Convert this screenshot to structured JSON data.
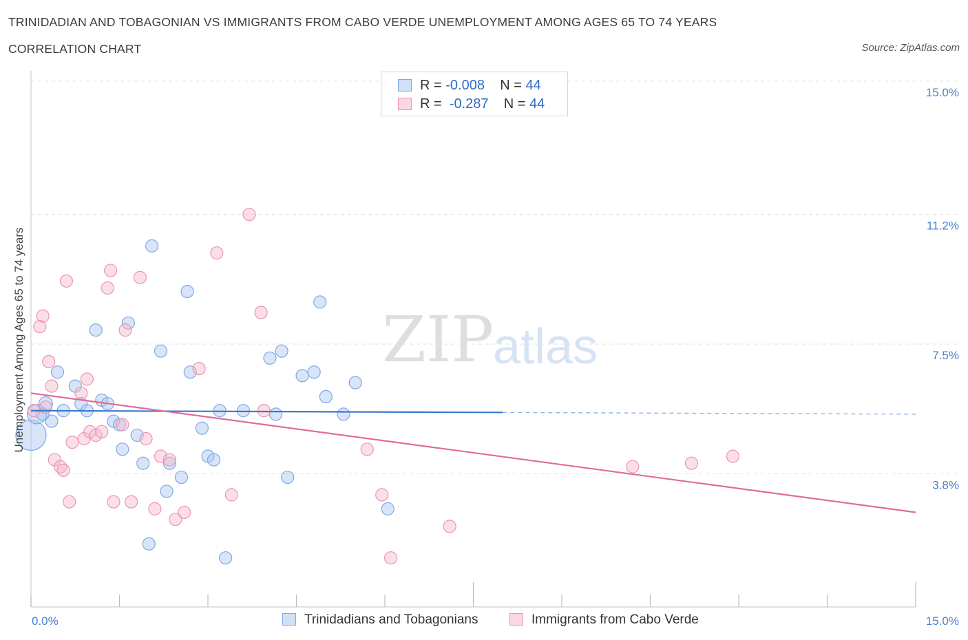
{
  "header": {
    "title": "TRINIDADIAN AND TOBAGONIAN VS IMMIGRANTS FROM CABO VERDE UNEMPLOYMENT AMONG AGES 65 TO 74 YEARS",
    "subtitle": "CORRELATION CHART",
    "source": "Source: ZipAtlas.com"
  },
  "watermark": {
    "zip": "ZIP",
    "atlas": "atlas"
  },
  "legend": {
    "rows": [
      {
        "r_label": "R = ",
        "r_value": "-0.008",
        "n_label": "N = ",
        "n_value": "44",
        "color": "#a9c6ef"
      },
      {
        "r_label": "R = ",
        "r_value": "-0.287",
        "n_label": "N = ",
        "n_value": "44",
        "color": "#f5b8cb"
      }
    ]
  },
  "bottom_legend": [
    {
      "label": "Trinidadians and Tobagonians",
      "color": "#a9c6ef"
    },
    {
      "label": "Immigrants from Cabo Verde",
      "color": "#f5b8cb"
    }
  ],
  "chart_data": {
    "type": "scatter",
    "title": "TRINIDADIAN AND TOBAGONIAN VS IMMIGRANTS FROM CABO VERDE UNEMPLOYMENT AMONG AGES 65 TO 74 YEARS",
    "xlabel": "",
    "ylabel": "Unemployment Among Ages 65 to 74 years",
    "xlim": [
      0,
      15
    ],
    "ylim": [
      0,
      15
    ],
    "x_tick_labels": [
      "0.0%",
      "15.0%"
    ],
    "y_ticks": [
      3.8,
      7.5,
      11.2,
      15.0
    ],
    "y_tick_labels": [
      "3.8%",
      "7.5%",
      "11.2%",
      "15.0%"
    ],
    "grid": true,
    "legend_position": "top-center",
    "series": [
      {
        "name": "Trinidadians and Tobagonians",
        "color": "#7da9e3",
        "trend": {
          "x": [
            0,
            8.0
          ],
          "y": [
            5.6,
            5.55
          ],
          "dashed_to": [
            15,
            5.5
          ]
        },
        "points": [
          [
            0.0,
            4.9,
            22
          ],
          [
            0.1,
            5.5,
            14
          ],
          [
            0.25,
            5.8,
            10
          ],
          [
            0.35,
            5.3,
            9
          ],
          [
            0.45,
            6.7,
            9
          ],
          [
            0.55,
            5.6,
            9
          ],
          [
            0.75,
            6.3,
            9
          ],
          [
            0.85,
            5.8,
            9
          ],
          [
            0.95,
            5.6,
            9
          ],
          [
            1.1,
            7.9,
            9
          ],
          [
            1.2,
            5.9,
            9
          ],
          [
            1.3,
            5.8,
            9
          ],
          [
            1.4,
            5.3,
            9
          ],
          [
            1.5,
            5.2,
            9
          ],
          [
            1.55,
            4.5,
            9
          ],
          [
            1.65,
            8.1,
            9
          ],
          [
            1.8,
            4.9,
            9
          ],
          [
            1.9,
            4.1,
            9
          ],
          [
            2.0,
            1.8,
            9
          ],
          [
            2.05,
            10.3,
            9
          ],
          [
            2.2,
            7.3,
            9
          ],
          [
            2.3,
            3.3,
            9
          ],
          [
            2.35,
            4.1,
            9
          ],
          [
            2.55,
            3.7,
            9
          ],
          [
            2.65,
            9.0,
            9
          ],
          [
            2.7,
            6.7,
            9
          ],
          [
            2.9,
            5.1,
            9
          ],
          [
            3.0,
            4.3,
            9
          ],
          [
            3.1,
            4.2,
            9
          ],
          [
            3.2,
            5.6,
            9
          ],
          [
            3.3,
            1.4,
            9
          ],
          [
            3.6,
            5.6,
            9
          ],
          [
            4.05,
            7.1,
            9
          ],
          [
            4.15,
            5.5,
            9
          ],
          [
            4.25,
            7.3,
            9
          ],
          [
            4.35,
            3.7,
            9
          ],
          [
            4.6,
            6.6,
            9
          ],
          [
            4.8,
            6.7,
            9
          ],
          [
            4.9,
            8.7,
            9
          ],
          [
            5.0,
            6.0,
            9
          ],
          [
            5.3,
            5.5,
            9
          ],
          [
            5.5,
            6.4,
            9
          ],
          [
            6.05,
            2.8,
            9
          ],
          [
            0.2,
            5.5,
            9
          ]
        ]
      },
      {
        "name": "Immigrants from Cabo Verde",
        "color": "#ee93b1",
        "trend": {
          "x": [
            0,
            15
          ],
          "y": [
            6.1,
            2.7
          ]
        },
        "points": [
          [
            0.05,
            5.6,
            9
          ],
          [
            0.15,
            8.0,
            9
          ],
          [
            0.2,
            8.3,
            9
          ],
          [
            0.25,
            5.7,
            9
          ],
          [
            0.3,
            7.0,
            9
          ],
          [
            0.35,
            6.3,
            9
          ],
          [
            0.4,
            4.2,
            9
          ],
          [
            0.5,
            4.0,
            9
          ],
          [
            0.6,
            9.3,
            9
          ],
          [
            0.65,
            3.0,
            9
          ],
          [
            0.7,
            4.7,
            9
          ],
          [
            0.85,
            6.1,
            9
          ],
          [
            0.9,
            4.8,
            9
          ],
          [
            0.95,
            6.5,
            9
          ],
          [
            1.0,
            5.0,
            9
          ],
          [
            1.1,
            4.9,
            9
          ],
          [
            1.2,
            5.0,
            9
          ],
          [
            1.3,
            9.1,
            9
          ],
          [
            1.35,
            9.6,
            9
          ],
          [
            1.4,
            3.0,
            9
          ],
          [
            1.55,
            5.2,
            9
          ],
          [
            1.6,
            7.9,
            9
          ],
          [
            1.7,
            3.0,
            9
          ],
          [
            1.85,
            9.4,
            9
          ],
          [
            1.95,
            4.8,
            9
          ],
          [
            2.1,
            2.8,
            9
          ],
          [
            2.2,
            4.3,
            9
          ],
          [
            2.35,
            4.2,
            9
          ],
          [
            2.45,
            2.5,
            9
          ],
          [
            2.6,
            2.7,
            9
          ],
          [
            2.85,
            6.8,
            9
          ],
          [
            3.15,
            10.1,
            9
          ],
          [
            3.4,
            3.2,
            9
          ],
          [
            3.7,
            11.2,
            9
          ],
          [
            3.9,
            8.4,
            9
          ],
          [
            3.95,
            5.6,
            9
          ],
          [
            5.7,
            4.5,
            9
          ],
          [
            5.95,
            3.2,
            9
          ],
          [
            6.1,
            1.4,
            9
          ],
          [
            7.1,
            2.3,
            9
          ],
          [
            10.2,
            4.0,
            9
          ],
          [
            11.2,
            4.1,
            9
          ],
          [
            11.9,
            4.3,
            9
          ],
          [
            0.55,
            3.9,
            9
          ]
        ]
      }
    ]
  }
}
